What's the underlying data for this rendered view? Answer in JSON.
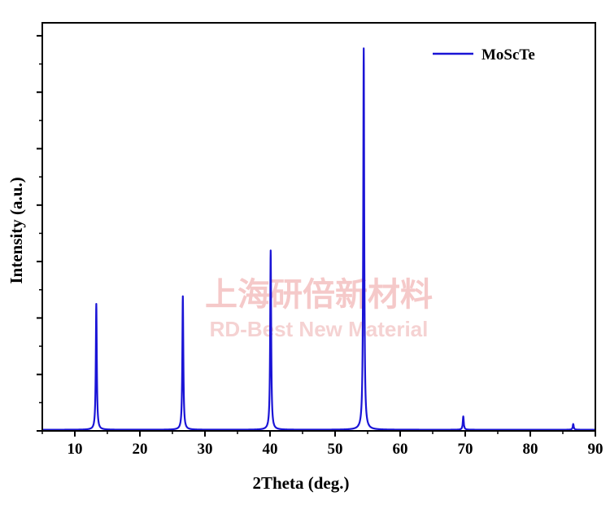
{
  "watermark": {
    "line1": "上海研倍新材料",
    "line2": "RD-Best New Material"
  },
  "chart_data": {
    "type": "line",
    "title": "",
    "xlabel": "2Theta (deg.)",
    "ylabel": "Intensity (a.u.)",
    "xlim": [
      5,
      90
    ],
    "ylim": [
      0,
      1.07
    ],
    "x_ticks": [
      10,
      20,
      30,
      40,
      50,
      60,
      70,
      80,
      90
    ],
    "y_tick_labels_shown": false,
    "grid": false,
    "legend_position": "top-right",
    "color": "#1a14d6",
    "series": [
      {
        "name": "MoScTe",
        "peaks": [
          {
            "x": 13.3,
            "y": 0.33
          },
          {
            "x": 26.6,
            "y": 0.35
          },
          {
            "x": 40.1,
            "y": 0.47
          },
          {
            "x": 54.4,
            "y": 1.0
          },
          {
            "x": 69.7,
            "y": 0.035
          },
          {
            "x": 86.6,
            "y": 0.015
          }
        ],
        "baseline": 0.003
      }
    ]
  }
}
